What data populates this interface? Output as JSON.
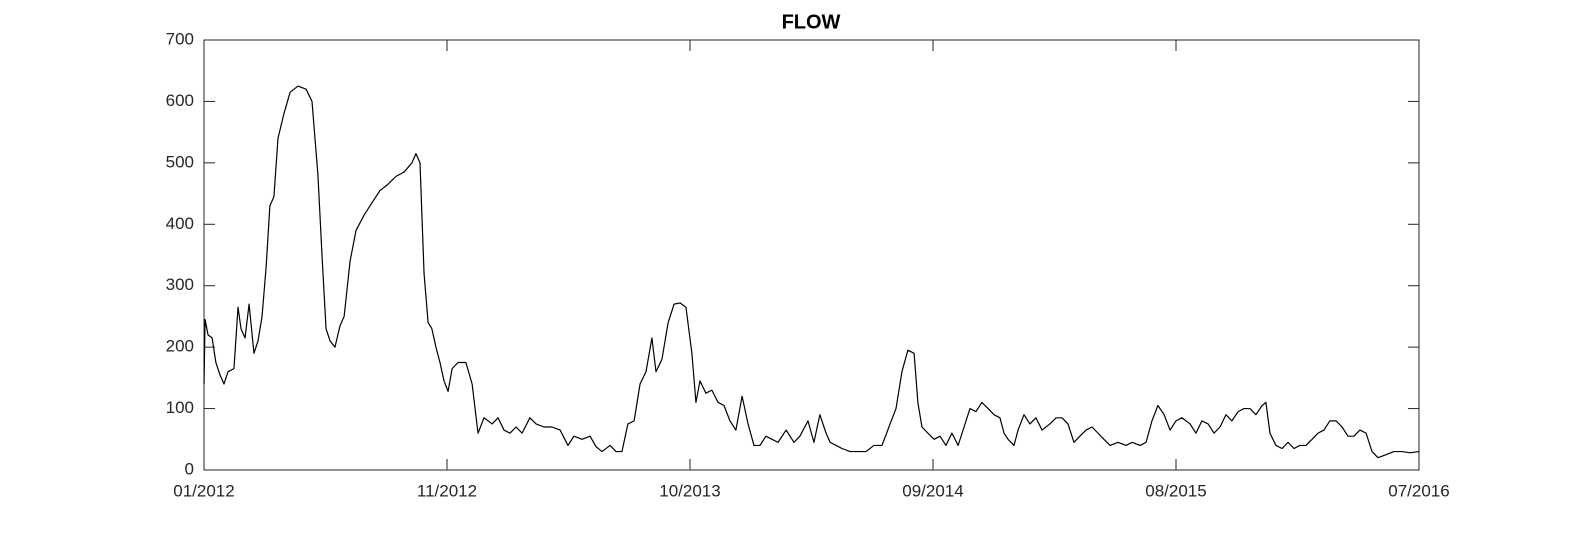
{
  "chart_data": {
    "type": "line",
    "title": "FLOW",
    "x": [
      2012.0,
      2012.004,
      2012.015,
      2012.03,
      2012.044,
      2012.059,
      2012.074,
      2012.089,
      2012.111,
      2012.126,
      2012.137,
      2012.152,
      2012.167,
      2012.185,
      2012.2,
      2012.215,
      2012.23,
      2012.244,
      2012.259,
      2012.274,
      2012.296,
      2012.319,
      2012.348,
      2012.378,
      2012.4,
      2012.422,
      2012.437,
      2012.452,
      2012.467,
      2012.485,
      2012.504,
      2012.519,
      2012.541,
      2012.563,
      2012.593,
      2012.622,
      2012.652,
      2012.681,
      2012.711,
      2012.741,
      2012.77,
      2012.785,
      2012.8,
      2012.815,
      2012.83,
      2012.844,
      2012.859,
      2012.874,
      2012.889,
      2012.904,
      2012.919,
      2012.941,
      2012.97,
      2012.993,
      2013.015,
      2013.037,
      2013.067,
      2013.089,
      2013.111,
      2013.133,
      2013.156,
      2013.178,
      2013.207,
      2013.23,
      2013.259,
      2013.289,
      2013.319,
      2013.348,
      2013.37,
      2013.4,
      2013.43,
      2013.452,
      2013.474,
      2013.504,
      2013.526,
      2013.548,
      2013.57,
      2013.593,
      2013.615,
      2013.637,
      2013.659,
      2013.674,
      2013.696,
      2013.719,
      2013.741,
      2013.763,
      2013.785,
      2013.807,
      2013.822,
      2013.837,
      2013.859,
      2013.881,
      2013.904,
      2013.926,
      2013.948,
      2013.97,
      2013.993,
      2014.015,
      2014.037,
      2014.059,
      2014.081,
      2014.104,
      2014.126,
      2014.156,
      2014.185,
      2014.207,
      2014.237,
      2014.259,
      2014.281,
      2014.304,
      2014.319,
      2014.341,
      2014.363,
      2014.393,
      2014.422,
      2014.452,
      2014.481,
      2014.511,
      2014.541,
      2014.563,
      2014.585,
      2014.607,
      2014.63,
      2014.644,
      2014.659,
      2014.681,
      2014.704,
      2014.726,
      2014.748,
      2014.77,
      2014.793,
      2014.815,
      2014.837,
      2014.859,
      2014.881,
      2014.904,
      2014.926,
      2014.948,
      2014.963,
      2014.978,
      2015.0,
      2015.015,
      2015.037,
      2015.059,
      2015.081,
      2015.104,
      2015.133,
      2015.156,
      2015.178,
      2015.2,
      2015.222,
      2015.244,
      2015.267,
      2015.289,
      2015.311,
      2015.333,
      2015.356,
      2015.385,
      2015.415,
      2015.437,
      2015.467,
      2015.489,
      2015.511,
      2015.533,
      2015.556,
      2015.578,
      2015.6,
      2015.622,
      2015.652,
      2015.674,
      2015.696,
      2015.719,
      2015.741,
      2015.763,
      2015.785,
      2015.807,
      2015.83,
      2015.852,
      2015.874,
      2015.896,
      2015.919,
      2015.933,
      2015.948,
      2015.97,
      2015.993,
      2016.015,
      2016.037,
      2016.059,
      2016.081,
      2016.104,
      2016.126,
      2016.148,
      2016.17,
      2016.193,
      2016.215,
      2016.237,
      2016.259,
      2016.281,
      2016.304,
      2016.326,
      2016.348,
      2016.378,
      2016.407,
      2016.437,
      2016.467,
      2016.5
    ],
    "values": [
      140,
      245,
      220,
      215,
      175,
      155,
      140,
      160,
      165,
      265,
      230,
      215,
      270,
      190,
      210,
      250,
      330,
      430,
      445,
      540,
      580,
      615,
      625,
      620,
      600,
      480,
      350,
      230,
      210,
      200,
      235,
      250,
      340,
      390,
      415,
      435,
      455,
      465,
      478,
      485,
      500,
      515,
      500,
      320,
      240,
      230,
      200,
      175,
      145,
      128,
      165,
      175,
      175,
      140,
      60,
      85,
      75,
      85,
      65,
      60,
      70,
      60,
      85,
      75,
      70,
      70,
      65,
      40,
      55,
      50,
      55,
      38,
      30,
      40,
      30,
      30,
      75,
      80,
      140,
      160,
      215,
      160,
      180,
      240,
      270,
      272,
      265,
      190,
      110,
      145,
      125,
      130,
      110,
      105,
      80,
      65,
      120,
      75,
      40,
      40,
      55,
      50,
      45,
      65,
      45,
      55,
      80,
      45,
      90,
      60,
      45,
      40,
      35,
      30,
      30,
      30,
      40,
      40,
      75,
      100,
      160,
      195,
      190,
      110,
      70,
      60,
      50,
      55,
      40,
      60,
      40,
      70,
      100,
      95,
      110,
      100,
      90,
      85,
      60,
      50,
      40,
      65,
      90,
      75,
      85,
      65,
      75,
      85,
      85,
      75,
      45,
      55,
      65,
      70,
      60,
      50,
      40,
      45,
      40,
      45,
      40,
      45,
      80,
      105,
      90,
      65,
      80,
      85,
      75,
      60,
      80,
      75,
      60,
      70,
      90,
      80,
      95,
      100,
      100,
      90,
      105,
      110,
      60,
      40,
      35,
      45,
      35,
      40,
      40,
      50,
      60,
      65,
      80,
      80,
      70,
      55,
      55,
      65,
      60,
      30,
      20,
      25,
      30,
      30,
      28,
      30
    ],
    "color": "#000000",
    "xlim": [
      2012.0,
      2016.5
    ],
    "xticks": [
      {
        "value": 2012.0,
        "label": "01/2012"
      },
      {
        "value": 2012.9,
        "label": "11/2012"
      },
      {
        "value": 2013.8,
        "label": "10/2013"
      },
      {
        "value": 2014.7,
        "label": "09/2014"
      },
      {
        "value": 2015.6,
        "label": "08/2015"
      },
      {
        "value": 2016.5,
        "label": "07/2016"
      }
    ],
    "ylim": [
      0,
      700
    ],
    "yticks": [
      0,
      100,
      200,
      300,
      400,
      500,
      600,
      700
    ],
    "grid": false
  }
}
